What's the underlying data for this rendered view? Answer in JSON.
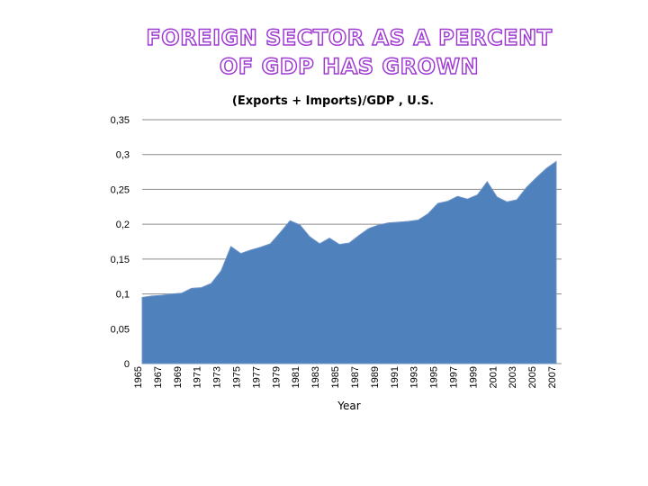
{
  "title": {
    "line1": "FOREIGN SECTOR AS A PERCENT",
    "line2": "OF GDP  HAS GROWN"
  },
  "colors": {
    "title_outline": "#a03cd2",
    "area_fill": "#4f81bd",
    "area_edge": "#6f95c8",
    "grid": "#8c8c8c"
  },
  "chart_data": {
    "type": "area",
    "title": "(Exports + Imports)/GDP , U.S.",
    "xlabel": "Year",
    "ylabel": "",
    "ylim": [
      0,
      0.35
    ],
    "yticks": [
      0,
      0.05,
      0.1,
      0.15,
      0.2,
      0.25,
      0.3,
      0.35
    ],
    "ytick_labels": [
      "0",
      "0,05",
      "0,1",
      "0,15",
      "0,2",
      "0,25",
      "0,3",
      "0,35"
    ],
    "xtick_labels": [
      "1965",
      "1967",
      "1969",
      "1971",
      "1973",
      "1975",
      "1977",
      "1979",
      "1981",
      "1983",
      "1985",
      "1987",
      "1989",
      "1991",
      "1993",
      "1995",
      "1997",
      "1999",
      "2001",
      "2003",
      "2005",
      "2007"
    ],
    "grid": "horizontal",
    "series": [
      {
        "name": "(Exports + Imports)/GDP",
        "x": [
          1965,
          1966,
          1967,
          1968,
          1969,
          1970,
          1971,
          1972,
          1973,
          1974,
          1975,
          1976,
          1977,
          1978,
          1979,
          1980,
          1981,
          1982,
          1983,
          1984,
          1985,
          1986,
          1987,
          1988,
          1989,
          1990,
          1991,
          1992,
          1993,
          1994,
          1995,
          1996,
          1997,
          1998,
          1999,
          2000,
          2001,
          2002,
          2003,
          2004,
          2005,
          2006,
          2007
        ],
        "values": [
          0.095,
          0.097,
          0.098,
          0.1,
          0.101,
          0.108,
          0.109,
          0.115,
          0.133,
          0.168,
          0.158,
          0.163,
          0.167,
          0.172,
          0.188,
          0.205,
          0.199,
          0.182,
          0.172,
          0.18,
          0.171,
          0.173,
          0.184,
          0.194,
          0.199,
          0.202,
          0.203,
          0.204,
          0.206,
          0.215,
          0.23,
          0.233,
          0.24,
          0.236,
          0.242,
          0.261,
          0.239,
          0.232,
          0.235,
          0.253,
          0.267,
          0.28,
          0.29
        ]
      }
    ]
  }
}
